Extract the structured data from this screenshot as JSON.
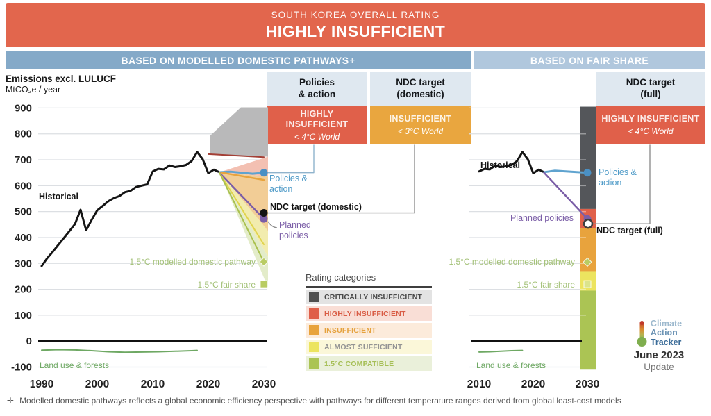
{
  "banner": {
    "kicker": "SOUTH KOREA OVERALL RATING",
    "title": "HIGHLY INSUFFICIENT",
    "bg": "#e2664d"
  },
  "sections": {
    "left": {
      "label": "BASED ON MODELLED DOMESTIC PATHWAYS",
      "sup": "✛",
      "bg": "#84a9c8"
    },
    "right": {
      "label": "BASED ON FAIR SHARE",
      "bg": "#b0c7dd"
    }
  },
  "axis_title": {
    "line1": "Emissions excl. LULUCF",
    "line2": "MtCO₂e / year"
  },
  "rating_boxes": [
    {
      "header_line1": "Policies",
      "header_line2": "& action",
      "rating": "HIGHLY INSUFFICIENT",
      "world": "< 4°C World",
      "color": "#e0604a"
    },
    {
      "header_line1": "NDC target",
      "header_line2": "(domestic)",
      "rating": "INSUFFICIENT",
      "world": "< 3°C World",
      "color": "#e9a63f"
    },
    {
      "header_line1": "NDC target",
      "header_line2": "(full)",
      "rating": "HIGHLY INSUFFICIENT",
      "world": "< 4°C World",
      "color": "#e0604a"
    }
  ],
  "annotations": {
    "historical": "Historical",
    "policies_action": "Policies & action",
    "ndc_domestic": "NDC target (domestic)",
    "ndc_full": "NDC target (full)",
    "planned_policies": "Planned policies",
    "p15_modelled": "1.5°C modelled domestic pathway",
    "p15_fair": "1.5°C fair share",
    "land_use": "Land use & forests"
  },
  "legend": {
    "title": "Rating categories",
    "items": [
      {
        "label": "CRITICALLY INSUFFICIENT",
        "swatch": "#4f4f4f",
        "bg": "#e3e3e3",
        "text": "#4a4a4a"
      },
      {
        "label": "HIGHLY INSUFFICIENT",
        "swatch": "#df5f49",
        "bg": "#f9ded6",
        "text": "#d95c45"
      },
      {
        "label": "INSUFFICIENT",
        "swatch": "#e8a33d",
        "bg": "#fcebdb",
        "text": "#e5a23e"
      },
      {
        "label": "ALMOST SUFFICIENT",
        "swatch": "#ece45f",
        "bg": "#fbf7d9",
        "text": "#949494"
      },
      {
        "label": "1.5°C COMPATIBLE",
        "swatch": "#abc454",
        "bg": "#eaf0da",
        "text": "#a6bf56"
      }
    ]
  },
  "logo": {
    "line1": "Climate",
    "line2": "Action",
    "line3": "Tracker",
    "date": "June 2023",
    "update": "Update"
  },
  "footer": {
    "marker": "✛",
    "text": "Modelled domestic pathways reflects a global economic efficiency perspective with pathways for different temperature ranges derived from global least-cost models"
  },
  "chart_data": [
    {
      "id": "based_on_modelled_domestic_pathways",
      "type": "line",
      "title": "BASED ON MODELLED DOMESTIC PATHWAYS✛",
      "ylabel": "Emissions excl. LULUCF, MtCO₂e / year",
      "x_ticks": [
        1990,
        2000,
        2010,
        2020,
        2030
      ],
      "y_ticks": [
        900,
        800,
        700,
        600,
        500,
        400,
        300,
        200,
        100,
        0,
        -100
      ],
      "ylim": [
        -100,
        900
      ],
      "grid": true,
      "series": [
        {
          "name": "Historical",
          "color": "#141414",
          "width": 3,
          "x": [
            1990,
            1991,
            1992,
            1993,
            1994,
            1995,
            1996,
            1997,
            1998,
            1999,
            2000,
            2001,
            2002,
            2003,
            2004,
            2005,
            2006,
            2007,
            2008,
            2009,
            2010,
            2011,
            2012,
            2013,
            2014,
            2015,
            2016,
            2017,
            2018,
            2019,
            2020,
            2021,
            2022
          ],
          "values": [
            290,
            320,
            345,
            372,
            398,
            425,
            452,
            507,
            428,
            468,
            505,
            522,
            540,
            552,
            560,
            575,
            580,
            595,
            600,
            605,
            655,
            665,
            663,
            678,
            672,
            675,
            680,
            695,
            730,
            702,
            648,
            662,
            652
          ]
        },
        {
          "name": "Policies & action range (upper)",
          "color": "#a33f36",
          "width": 2,
          "x": [
            2020,
            2030
          ],
          "values": [
            722,
            710
          ]
        },
        {
          "name": "Policies & action",
          "color": "#5fa3cf",
          "width": 3,
          "x": [
            2022,
            2024,
            2026,
            2028,
            2030
          ],
          "values": [
            652,
            654,
            650,
            646,
            650
          ],
          "end_marker": "circle",
          "marker_color": "#4a90c4"
        },
        {
          "name": "Insufficient range upper pathway",
          "color": "#e8a33d",
          "width": 2.5,
          "x": [
            2022,
            2030
          ],
          "values": [
            652,
            622
          ]
        },
        {
          "name": "Planned policies",
          "color": "#7b5ea7",
          "width": 2.5,
          "x": [
            2022,
            2030
          ],
          "values": [
            650,
            472
          ],
          "end_marker": "circle",
          "marker_color": "#7b5ea7"
        },
        {
          "name": "Almost sufficient pathway",
          "color": "#e0d44e",
          "width": 2,
          "x": [
            2022,
            2030
          ],
          "values": [
            650,
            373
          ]
        },
        {
          "name": "1.5°C modelled domestic pathway",
          "color": "#a9c04d",
          "width": 2,
          "x": [
            2022,
            2030
          ],
          "values": [
            650,
            306
          ],
          "end_marker": "diamond",
          "marker_color": "#b9cc63"
        },
        {
          "name": "Land use & forests",
          "color": "#6ea863",
          "width": 2,
          "x": [
            1990,
            1993,
            1996,
            1999,
            2002,
            2005,
            2008,
            2011,
            2014,
            2017,
            2018
          ],
          "values": [
            -35,
            -33,
            -34,
            -37,
            -41,
            -43,
            -42,
            -41,
            -39,
            -37,
            -36
          ]
        }
      ],
      "points": [
        {
          "name": "NDC target (domestic)",
          "x": 2030,
          "value": 495,
          "marker": "circle",
          "color": "#141414"
        },
        {
          "name": "1.5°C fair share",
          "x": 2030,
          "value": 220,
          "marker": "square",
          "color": "#b9cc63"
        }
      ],
      "bands_2030": [
        {
          "rating": "CRITICALLY INSUFFICIENT",
          "range": [
            712,
            905
          ],
          "color": "#b9b9ba"
        },
        {
          "rating": "HIGHLY INSUFFICIENT",
          "range": [
            635,
            712
          ],
          "color": "#f3c0b2"
        },
        {
          "rating": "INSUFFICIENT",
          "range": [
            425,
            635
          ],
          "color": "#f2cd96"
        },
        {
          "rating": "ALMOST SUFFICIENT",
          "range": [
            325,
            425
          ],
          "color": "#f2ecae"
        },
        {
          "rating": "1.5°C COMPATIBLE",
          "range": [
            207,
            325
          ],
          "color": "#e3ecc9"
        }
      ]
    },
    {
      "id": "based_on_fair_share",
      "type": "line",
      "title": "BASED ON FAIR SHARE",
      "x_ticks": [
        2010,
        2020,
        2030
      ],
      "y_ticks": [
        900,
        800,
        700,
        600,
        500,
        400,
        300,
        200,
        100,
        0,
        -100
      ],
      "ylim": [
        -100,
        900
      ],
      "grid": true,
      "series": [
        {
          "name": "Historical",
          "color": "#141414",
          "width": 3,
          "x": [
            2010,
            2011,
            2012,
            2013,
            2014,
            2015,
            2016,
            2017,
            2018,
            2019,
            2020,
            2021,
            2022
          ],
          "values": [
            655,
            665,
            663,
            678,
            672,
            675,
            680,
            695,
            730,
            702,
            648,
            662,
            652
          ]
        },
        {
          "name": "Policies & action",
          "color": "#5fa3cf",
          "width": 3,
          "x": [
            2022,
            2024,
            2027,
            2030
          ],
          "values": [
            652,
            658,
            654,
            650
          ],
          "end_marker": "circle",
          "marker_color": "#4a90c4"
        },
        {
          "name": "Planned policies",
          "color": "#7b5ea7",
          "width": 2.5,
          "x": [
            2022,
            2030
          ],
          "values": [
            650,
            472
          ],
          "end_marker": "circle",
          "marker_color": "#7b5ea7"
        },
        {
          "name": "Land use & forests",
          "color": "#6ea863",
          "width": 2,
          "x": [
            2010,
            2012,
            2014,
            2016,
            2018
          ],
          "values": [
            -42,
            -41,
            -39,
            -37,
            -36
          ]
        }
      ],
      "points": [
        {
          "name": "NDC target (full)",
          "x": 2030,
          "value": 453,
          "marker": "circle-open",
          "color": "#ffffff",
          "stroke": "#3f3f3f"
        },
        {
          "name": "1.5°C modelled domestic pathway",
          "x": 2030,
          "value": 305,
          "marker": "diamond",
          "color": "#b9cc63"
        },
        {
          "name": "1.5°C fair share",
          "x": 2030,
          "value": 220,
          "marker": "square",
          "color": "#dbe48c"
        }
      ],
      "rating_bar_2030": [
        {
          "rating": "CRITICALLY INSUFFICIENT",
          "range": [
            510,
            905
          ],
          "color": "#54565a"
        },
        {
          "rating": "HIGHLY INSUFFICIENT",
          "range": [
            435,
            510
          ],
          "color": "#e0604a"
        },
        {
          "rating": "INSUFFICIENT",
          "range": [
            270,
            435
          ],
          "color": "#e8a33d"
        },
        {
          "rating": "ALMOST SUFFICIENT",
          "range": [
            195,
            270
          ],
          "color": "#ece45f"
        },
        {
          "rating": "1.5°C COMPATIBLE",
          "range": [
            -110,
            195
          ],
          "color": "#abc454"
        }
      ]
    }
  ]
}
